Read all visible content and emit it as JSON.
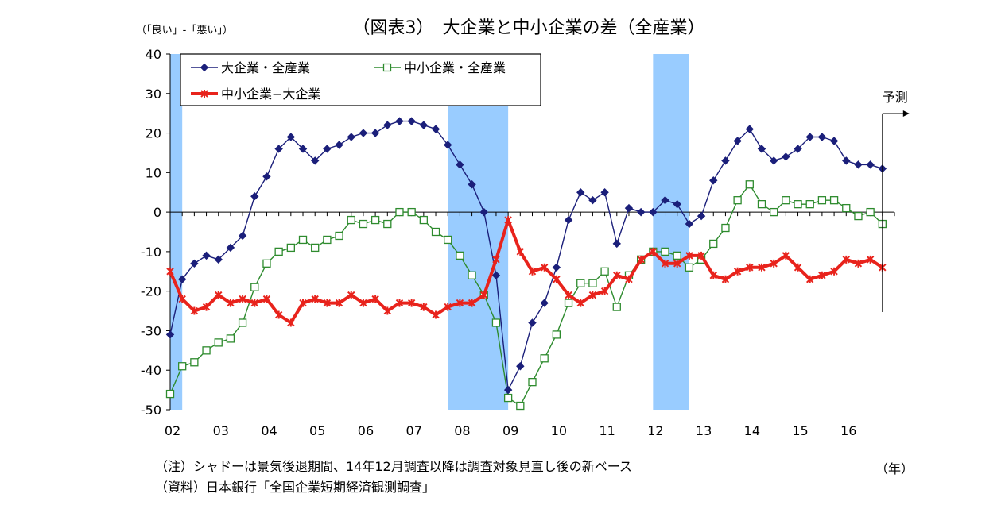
{
  "chart_data": {
    "type": "line",
    "title": "（図表3）　大企業と中小企業の差（全産業）",
    "ylabel": "（「良い」-「悪い」）",
    "xlabel": "（年）",
    "ylim": [
      -50,
      40
    ],
    "yticks": [
      40,
      30,
      20,
      10,
      0,
      -10,
      -20,
      -30,
      -40,
      -50
    ],
    "xlim": [
      2002.0,
      2017.0
    ],
    "x_tick_labels": [
      "02",
      "03",
      "04",
      "05",
      "06",
      "07",
      "08",
      "09",
      "10",
      "11",
      "12",
      "13",
      "14",
      "15",
      "16"
    ],
    "shaded_recessions": [
      {
        "start": 2002.0,
        "end": 2002.25
      },
      {
        "start": 2007.75,
        "end": 2009.0
      },
      {
        "start": 2012.0,
        "end": 2012.75
      }
    ],
    "forecast_label": "予測",
    "forecast_x": 2016.75,
    "series": [
      {
        "name": "大企業・全産業",
        "color": "#1b1f7a",
        "marker": "diamond",
        "values": [
          -31,
          -17,
          -13,
          -11,
          -12,
          -9,
          -6,
          4,
          9,
          16,
          19,
          16,
          13,
          16,
          17,
          19,
          20,
          20,
          22,
          23,
          23,
          22,
          21,
          17,
          12,
          7,
          0,
          -16,
          -45,
          -39,
          -28,
          -23,
          -14,
          -2,
          5,
          3,
          5,
          -8,
          1,
          0,
          0,
          3,
          2,
          -3,
          -1,
          8,
          13,
          18,
          21,
          16,
          13,
          14,
          16,
          19,
          19,
          18,
          13,
          12,
          12,
          11
        ]
      },
      {
        "name": "中小企業・全産業",
        "color": "#2e8b2e",
        "marker": "square",
        "values": [
          -46,
          -39,
          -38,
          -35,
          -33,
          -32,
          -28,
          -19,
          -13,
          -10,
          -9,
          -7,
          -9,
          -7,
          -6,
          -2,
          -3,
          -2,
          -3,
          0,
          0,
          -2,
          -5,
          -7,
          -11,
          -16,
          -21,
          -28,
          -47,
          -49,
          -43,
          -37,
          -31,
          -23,
          -18,
          -18,
          -15,
          -24,
          -16,
          -12,
          -10,
          -10,
          -11,
          -14,
          -12,
          -8,
          -4,
          3,
          7,
          2,
          0,
          3,
          2,
          2,
          3,
          3,
          1,
          -1,
          0,
          -3
        ]
      },
      {
        "name": "中小企業−大企業",
        "color": "#e8231c",
        "marker": "star",
        "values": [
          -15,
          -22,
          -25,
          -24,
          -21,
          -23,
          -22,
          -23,
          -22,
          -26,
          -28,
          -23,
          -22,
          -23,
          -23,
          -21,
          -23,
          -22,
          -25,
          -23,
          -23,
          -24,
          -26,
          -24,
          -23,
          -23,
          -21,
          -12,
          -2,
          -10,
          -15,
          -14,
          -17,
          -21,
          -23,
          -21,
          -20,
          -16,
          -17,
          -12,
          -10,
          -13,
          -13,
          -11,
          -11,
          -16,
          -17,
          -15,
          -14,
          -14,
          -13,
          -11,
          -14,
          -17,
          -16,
          -15,
          -12,
          -13,
          -12,
          -14
        ]
      }
    ],
    "legend_position": "top-left",
    "grid": false
  },
  "notes": {
    "line1": "（注）シャドーは景気後退期間、14年12月調査以降は調査対象見直し後の新ベース",
    "line2": "（資料）日本銀行「全国企業短期経済観測調査」"
  }
}
